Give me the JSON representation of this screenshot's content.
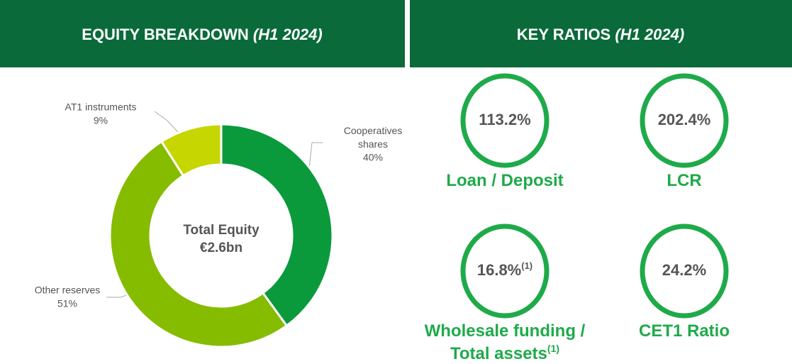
{
  "chart_data": {
    "type": "donut",
    "title": "EQUITY BREAKDOWN",
    "title_note": "(H1 2024)",
    "categories": [
      "Cooperatives shares",
      "Other reserves",
      "AT1 instruments"
    ],
    "values": [
      40,
      51,
      9
    ],
    "value_labels": [
      "40%",
      "51%",
      "9%"
    ],
    "colors": [
      "#0a9a3c",
      "#86bc00",
      "#c6d600"
    ],
    "center_label": [
      "Total Equity",
      "€2.6bn"
    ]
  },
  "ratios": {
    "title": "KEY RATIOS",
    "title_note": "(H1 2024)",
    "items": [
      {
        "value": "113.2%",
        "label": "Loan / Deposit"
      },
      {
        "value": "202.4%",
        "label": "LCR"
      },
      {
        "value": "16.8%",
        "value_note": "(1)",
        "label": "Wholesale funding /",
        "label_line2": "Total assets",
        "label_note": "(1)"
      },
      {
        "value": "24.2%",
        "label": "CET1 Ratio"
      }
    ]
  }
}
